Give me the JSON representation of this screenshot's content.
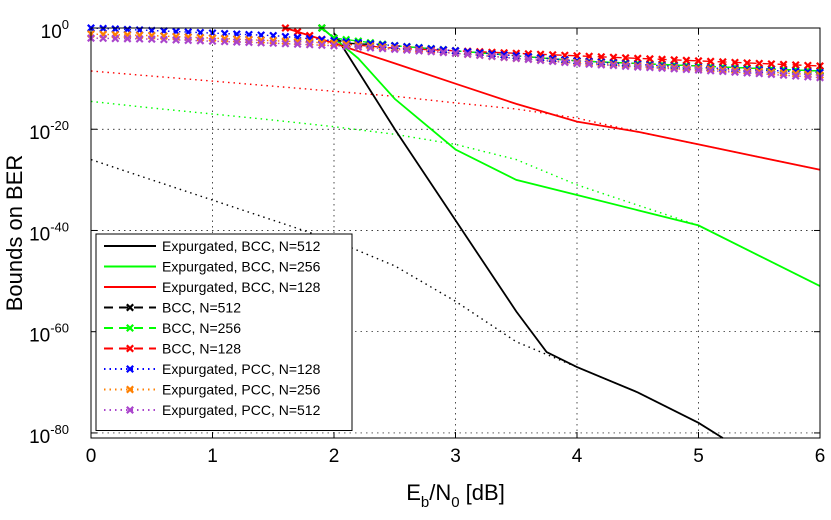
{
  "chart_data": {
    "type": "line",
    "xlabel": "E_b/N_0 [dB]",
    "ylabel": "Bounds on BER",
    "xlim": [
      0,
      6
    ],
    "ylim_log10": [
      -81,
      0
    ],
    "yscale": "log",
    "grid": true,
    "legend_placement": "bottom-left",
    "x_ticks": [
      0,
      1,
      2,
      3,
      4,
      5,
      6
    ],
    "y_ticks_log10": [
      0,
      -20,
      -40,
      -60,
      -80
    ],
    "y_tick_base": "10",
    "series": [
      {
        "name": "Expurgated, BCC, N=512",
        "color": "#000000",
        "line": "solid",
        "marker": "none",
        "x": [
          2.0,
          2.5,
          3.0,
          3.5,
          3.75,
          4.0,
          4.5,
          5.0,
          5.2
        ],
        "log10_y": [
          -1,
          -20,
          -38,
          -56,
          -64,
          -67,
          -72,
          -78,
          -81
        ]
      },
      {
        "name": "Expurgated, BCC, N=256",
        "color": "#00ff00",
        "line": "solid",
        "marker": "none",
        "x": [
          1.9,
          2.2,
          2.5,
          3.0,
          3.5,
          4.0,
          4.5,
          5.0,
          5.5,
          6.0
        ],
        "log10_y": [
          0,
          -6,
          -14,
          -24,
          -30,
          -33,
          -36,
          -39,
          -45,
          -51
        ]
      },
      {
        "name": "Expurgated, BCC, N=128",
        "color": "#ff0000",
        "line": "solid",
        "marker": "none",
        "x": [
          1.6,
          2.0,
          2.5,
          3.0,
          3.5,
          4.0,
          4.5,
          5.0,
          5.5,
          6.0
        ],
        "log10_y": [
          0,
          -3,
          -7,
          -11,
          -15,
          -18.5,
          -20.5,
          -23,
          -25.5,
          -28
        ]
      },
      {
        "name": "BCC, N=512",
        "color": "#000000",
        "line": "dashed",
        "marker": "x",
        "x": [
          1.9,
          2.0,
          2.1,
          2.5,
          3.0,
          3.5,
          4.0,
          4.5,
          5.0,
          5.5,
          6.0
        ],
        "log10_y": [
          0,
          -2,
          -3,
          -3.5,
          -4.5,
          -5.5,
          -6.5,
          -7,
          -7.5,
          -8,
          -8.5
        ]
      },
      {
        "name": "BCC, N=256",
        "color": "#00ff00",
        "line": "dashed",
        "marker": "x",
        "x": [
          1.9,
          2.0,
          2.5,
          3.0,
          3.5,
          4.0,
          4.5,
          5.0,
          5.5,
          6.0
        ],
        "log10_y": [
          0,
          -2,
          -3.5,
          -4.5,
          -5.5,
          -6.5,
          -7,
          -7.5,
          -8,
          -8.5
        ]
      },
      {
        "name": "BCC, N=128",
        "color": "#ff0000",
        "line": "dashed",
        "marker": "x",
        "x": [
          1.6,
          2.0,
          2.5,
          3.0,
          3.5,
          4.0,
          4.5,
          5.0,
          5.5,
          6.0
        ],
        "log10_y": [
          0,
          -3,
          -4,
          -4.5,
          -5,
          -5.5,
          -6,
          -6.5,
          -7,
          -7.5
        ]
      },
      {
        "name": "Expurgated, PCC, N=128",
        "color": "#0000ff",
        "line": "dotted",
        "marker": "x",
        "x": [
          0,
          0.5,
          1.0,
          1.5,
          2.0,
          2.5,
          3.0,
          3.5,
          4.0,
          4.5,
          5.0,
          5.5,
          6.0
        ],
        "log10_y": [
          0,
          -0.5,
          -1,
          -1.5,
          -2.5,
          -3.5,
          -4.5,
          -5.5,
          -6.5,
          -7.2,
          -7.8,
          -8.3,
          -8.8
        ]
      },
      {
        "name": "Expurgated, PCC, N=256",
        "color": "#ff8000",
        "line": "dotted",
        "marker": "x",
        "x": [
          0,
          0.5,
          1.0,
          1.5,
          2.0,
          2.5,
          3.0,
          3.5,
          4.0,
          4.5,
          5.0,
          5.5,
          6.0
        ],
        "log10_y": [
          -1.2,
          -1.5,
          -2,
          -2.5,
          -3,
          -4,
          -5,
          -6,
          -6.8,
          -7.5,
          -8,
          -8.6,
          -9.3
        ]
      },
      {
        "name": "Expurgated, PCC, N=512",
        "color": "#aa44cc",
        "line": "dotted",
        "marker": "x",
        "x": [
          0,
          0.5,
          1.0,
          1.5,
          2.0,
          2.5,
          3.0,
          3.5,
          4.0,
          4.5,
          5.0,
          5.5,
          6.0
        ],
        "log10_y": [
          -2,
          -2.2,
          -2.6,
          -3,
          -3.5,
          -4.2,
          -5,
          -6,
          -7,
          -7.7,
          -8.3,
          -9,
          -9.8
        ]
      },
      {
        "name": "",
        "color": "#ff0000",
        "line": "dotted",
        "marker": "none",
        "x": [
          0,
          0.5,
          1.0,
          1.5,
          2.0,
          2.5,
          3.0,
          3.5,
          4.0,
          4.5,
          5.0,
          5.5,
          6.0
        ],
        "log10_y": [
          -8.5,
          -9.5,
          -10.5,
          -11.5,
          -12.5,
          -13.5,
          -14.8,
          -16,
          -17.8,
          -20.5,
          -23,
          -25.5,
          -28
        ]
      },
      {
        "name": "",
        "color": "#00ff00",
        "line": "dotted",
        "marker": "none",
        "x": [
          0,
          0.5,
          1.0,
          1.5,
          2.0,
          2.5,
          3.0,
          3.5,
          4.0,
          4.5,
          5.0,
          5.5,
          6.0
        ],
        "log10_y": [
          -14.5,
          -15.8,
          -17,
          -18.2,
          -19.5,
          -21,
          -23,
          -26,
          -31,
          -35,
          -39,
          -45,
          -51
        ]
      },
      {
        "name": "",
        "color": "#000000",
        "line": "dotted",
        "marker": "none",
        "x": [
          0,
          0.5,
          1.0,
          1.5,
          2.0,
          2.5,
          3.0,
          3.5,
          4.0,
          4.5,
          5.0,
          5.2
        ],
        "log10_y": [
          -26,
          -30,
          -34,
          -38,
          -42,
          -47,
          -54,
          -62,
          -67,
          -72,
          -78,
          -81
        ]
      }
    ]
  }
}
